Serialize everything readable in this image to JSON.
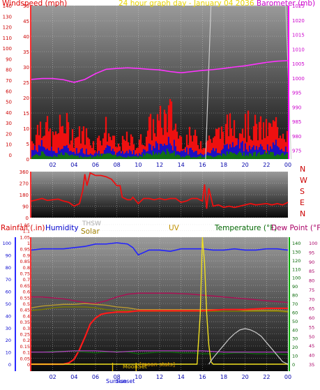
{
  "colors": {
    "wind_label": "#e00000",
    "barometer": "#cc00cc",
    "header_title": "#e8d400",
    "rain": "#d80000",
    "humidity": "#0000cc",
    "solar": "#a08000",
    "uv": "#c09000",
    "temperature": "#006600",
    "dewpoint": "#aa0066",
    "thsw": "#999999",
    "compass": "#cc0000"
  },
  "chart_data": [
    {
      "id": "wind_baro",
      "type": "area",
      "title": "24 hour graph day - January 04 2036",
      "left_axis_label": "Windspeed (mph)",
      "right_axis_label": "Barometer (mb)",
      "x_tick_labels": [
        "02",
        "04",
        "06",
        "08",
        "10",
        "12",
        "14",
        "16",
        "18",
        "20",
        "22",
        "00"
      ],
      "xlim": [
        0,
        24
      ],
      "wind_ylim": [
        0,
        50
      ],
      "wind_ticks_mph": [
        0,
        5,
        10,
        15,
        20,
        25,
        30,
        35,
        40,
        45,
        50
      ],
      "wind_ticks_kmh": [
        0,
        10,
        20,
        30,
        40,
        50,
        60,
        70,
        80,
        90,
        100,
        110,
        120,
        130,
        140
      ],
      "baro_ylim": [
        972,
        1025
      ],
      "baro_ticks": [
        975,
        980,
        985,
        990,
        995,
        1000,
        1005,
        1010,
        1015,
        1020,
        1025
      ],
      "barometer": {
        "name": "Barometer",
        "x": [
          0,
          1,
          2,
          3,
          4,
          5,
          6,
          7,
          8,
          9,
          10,
          11,
          12,
          13,
          14,
          15,
          16,
          17,
          18,
          19,
          20,
          21,
          22,
          23,
          24
        ],
        "values": [
          999.5,
          999.8,
          999.8,
          999.4,
          998.5,
          999.5,
          1001.5,
          1003,
          1003.3,
          1003.5,
          1003.3,
          1003,
          1002.8,
          1002.2,
          1001.8,
          1002.2,
          1002.6,
          1002.9,
          1003.3,
          1003.8,
          1004.2,
          1004.8,
          1005.4,
          1005.8,
          1006
        ]
      },
      "gust": {
        "name": "Wind gust",
        "x": [
          0,
          1,
          2,
          3,
          4,
          5,
          6,
          7,
          8,
          9,
          10,
          11,
          12,
          13,
          14,
          15,
          16,
          17,
          18,
          19,
          20,
          21,
          22,
          23,
          24
        ],
        "values": [
          6,
          14,
          7,
          13,
          8,
          9,
          5,
          11,
          4,
          7,
          5,
          11,
          13,
          16,
          7,
          8,
          6,
          8,
          10,
          13,
          12,
          11,
          10,
          12,
          10
        ]
      },
      "avg_wind": {
        "name": "Wind speed",
        "x": [
          0,
          1,
          2,
          3,
          4,
          5,
          6,
          7,
          8,
          9,
          10,
          11,
          12,
          13,
          14,
          15,
          16,
          17,
          18,
          19,
          20,
          21,
          22,
          23,
          24
        ],
        "values": [
          3,
          5,
          3,
          4,
          3,
          3,
          2,
          4,
          2,
          3,
          2,
          4,
          5,
          6,
          3,
          3,
          2,
          3,
          4,
          5,
          5,
          4,
          4,
          5,
          4
        ]
      },
      "wind_min": {
        "name": "Wind minimum",
        "x": [
          0,
          1,
          2,
          3,
          4,
          5,
          6,
          7,
          8,
          9,
          10,
          11,
          12,
          13,
          14,
          15,
          16,
          17,
          18,
          19,
          20,
          21,
          22,
          23,
          24
        ],
        "values": [
          1,
          2,
          1,
          2,
          1,
          1,
          1,
          2,
          1,
          1,
          1,
          2,
          2,
          3,
          1,
          1,
          1,
          1,
          2,
          2,
          2,
          2,
          2,
          2,
          2
        ]
      },
      "solar_trace": {
        "name": "Solar (Wm2, bg)",
        "x": [
          16.3,
          16.8,
          23.8,
          24.3
        ],
        "values": [
          0,
          50,
          50,
          0
        ]
      }
    },
    {
      "id": "wind_direction",
      "type": "line",
      "xlim": [
        0,
        24
      ],
      "ylim": [
        0,
        360
      ],
      "y_ticks": [
        0,
        90,
        180,
        270,
        360
      ],
      "compass_labels": [
        "N",
        "W",
        "S",
        "E",
        "N"
      ],
      "series": [
        {
          "name": "Wind direction",
          "x": [
            0,
            0.5,
            1,
            1.5,
            2,
            2.5,
            3,
            3.5,
            4,
            4.5,
            4.8,
            5,
            5.2,
            5.5,
            6,
            6.5,
            7,
            7.5,
            8,
            8.3,
            8.5,
            9,
            9.3,
            9.5,
            10,
            10.5,
            11,
            11.5,
            12,
            12.5,
            13,
            13.5,
            14,
            14.5,
            15,
            15.5,
            16,
            16.2,
            16.4,
            16.6,
            17,
            17.5,
            18,
            18.5,
            19,
            19.5,
            20,
            20.5,
            21,
            21.5,
            22,
            22.5,
            23,
            23.5,
            24
          ],
          "values": [
            130,
            140,
            150,
            135,
            140,
            145,
            130,
            120,
            90,
            110,
            210,
            340,
            250,
            350,
            330,
            330,
            320,
            300,
            250,
            250,
            160,
            140,
            140,
            160,
            110,
            150,
            150,
            140,
            150,
            140,
            150,
            150,
            120,
            130,
            150,
            150,
            130,
            260,
            70,
            230,
            90,
            100,
            80,
            90,
            80,
            90,
            100,
            110,
            100,
            105,
            110,
            100,
            110,
            100,
            120
          ]
        }
      ]
    },
    {
      "id": "temp_etc",
      "type": "line",
      "labels": [
        "Rainfall (.in)",
        "Humidity",
        "THSW",
        "Solar",
        "UV",
        "Temperature (°F)",
        "Dew Point (°F)"
      ],
      "x_tick_labels": [
        "02",
        "04",
        "06",
        "08",
        "10",
        "12",
        "14",
        "16",
        "18",
        "20",
        "22",
        "00"
      ],
      "xlim": [
        0,
        24
      ],
      "rain_ylim": [
        0,
        1
      ],
      "rain_ticks": [
        0,
        0.05,
        0.1,
        0.15,
        0.2,
        0.25,
        0.3,
        0.35,
        0.4,
        0.45,
        0.5,
        0.55,
        0.6,
        0.65,
        0.7,
        0.75,
        0.8,
        0.85,
        0.9,
        0.95,
        1,
        1.05,
        1.1,
        1.15
      ],
      "humidity_ticks": [
        0,
        10,
        20,
        30,
        40,
        50,
        60,
        70,
        80,
        90,
        100
      ],
      "temp_ticks": [
        0,
        10,
        20,
        30,
        40,
        50,
        60,
        70,
        80,
        90,
        100,
        110,
        120,
        130,
        140
      ],
      "dew_ticks": [
        35,
        40,
        45,
        50,
        55,
        60,
        65,
        70,
        75,
        80,
        85,
        90,
        95,
        100
      ],
      "annotations": {
        "sunrise": "Sunrise",
        "sunset": "Sunset",
        "moonset": "MoonSet",
        "moon_text": "[moon stats]"
      },
      "series": [
        {
          "name": "Humidity",
          "axis": "humidity",
          "x": [
            0,
            1,
            2,
            3,
            4,
            5,
            6,
            7,
            8,
            9,
            9.5,
            10,
            10.5,
            11,
            12,
            13,
            14,
            15,
            16,
            17,
            18,
            19,
            20,
            21,
            22,
            23,
            24
          ],
          "values": [
            94,
            95,
            95,
            95,
            96,
            97,
            99,
            99,
            100,
            99,
            96,
            90,
            92,
            94,
            94,
            93,
            95,
            95,
            95,
            94,
            94,
            95,
            94,
            94,
            95,
            95,
            94
          ]
        },
        {
          "name": "Dew Point",
          "axis": "dew",
          "x": [
            0,
            1,
            2,
            3,
            4,
            5,
            6,
            7,
            8,
            9,
            10,
            11,
            12,
            13,
            14,
            15,
            16,
            17,
            18,
            19,
            20,
            21,
            22,
            23,
            24
          ],
          "values": [
            71,
            71,
            70.5,
            70,
            69,
            68,
            67.5,
            69,
            71,
            72.5,
            73,
            73,
            73,
            73,
            72.8,
            72.5,
            72,
            71.5,
            71,
            70.5,
            70,
            69.5,
            69,
            68.5,
            68
          ]
        },
        {
          "name": "THSW",
          "axis": "temp",
          "x": [
            0,
            1,
            2,
            3,
            4,
            5,
            6,
            7,
            8,
            9,
            10,
            11,
            12,
            13,
            14,
            15,
            16,
            17,
            18,
            19,
            20,
            21,
            22,
            23,
            24
          ],
          "values": [
            65,
            67,
            68,
            69,
            69,
            70,
            69,
            68,
            66,
            65,
            63,
            63,
            63,
            63,
            63,
            63,
            63,
            63,
            63,
            63,
            62,
            62,
            62,
            62,
            61
          ]
        },
        {
          "name": "Temperature",
          "axis": "temp",
          "x": [
            0,
            1,
            2,
            3,
            4,
            5,
            6,
            7,
            8,
            9,
            10,
            11,
            12,
            13,
            14,
            15,
            16,
            17,
            18,
            19,
            20,
            21,
            22,
            23,
            24
          ],
          "values": [
            62,
            63,
            65,
            66,
            66,
            66,
            65,
            63,
            62,
            62,
            61,
            61,
            61,
            61,
            61,
            61,
            61,
            61,
            61,
            61,
            61,
            61,
            61,
            61,
            60
          ]
        },
        {
          "name": "Rainfall",
          "axis": "rain",
          "x": [
            0,
            3,
            3.5,
            4,
            4.5,
            5,
            5.5,
            6,
            6.5,
            7,
            8,
            9,
            10,
            12,
            14,
            16,
            18,
            20,
            22,
            24
          ],
          "values": [
            0,
            0,
            0.01,
            0.04,
            0.12,
            0.22,
            0.33,
            0.38,
            0.41,
            0.42,
            0.43,
            0.43,
            0.44,
            0.44,
            0.44,
            0.44,
            0.45,
            0.45,
            0.46,
            0.46
          ]
        },
        {
          "name": "Temperature (low)",
          "axis": "temp",
          "x": [
            0,
            1,
            2,
            3,
            4,
            5,
            6,
            7,
            8,
            9,
            10,
            11,
            12,
            13,
            14,
            15,
            16,
            17,
            18,
            19,
            20,
            21,
            22,
            23,
            24
          ],
          "values": [
            14,
            14,
            15,
            15,
            15,
            14,
            13,
            14,
            15,
            14,
            12,
            13,
            14,
            14,
            13,
            13,
            12,
            12,
            12,
            13,
            13,
            12,
            12,
            12,
            11
          ]
        },
        {
          "name": "Humidity (low)",
          "axis": "humidity",
          "x": [
            0,
            2,
            4,
            6,
            8,
            10,
            12,
            14,
            16,
            18,
            20,
            22,
            24
          ],
          "values": [
            10,
            10,
            11,
            11,
            10,
            11,
            11,
            11,
            11,
            10,
            10,
            10,
            10
          ]
        },
        {
          "name": "Solar",
          "axis": "solar",
          "x": [
            0,
            15.5,
            15.8,
            16,
            16.2,
            16.4,
            16.6,
            16.8,
            17,
            24
          ],
          "values": [
            0,
            0,
            0.4,
            1.0,
            0.8,
            0.4,
            0.15,
            0.02,
            0,
            0
          ]
        },
        {
          "name": "UV",
          "axis": "solar",
          "x": [
            16.6,
            17,
            17.5,
            18,
            18.5,
            19,
            19.5,
            20,
            20.5,
            21,
            21.5,
            22,
            22.5,
            23,
            23.5,
            24
          ],
          "values": [
            0,
            0.05,
            0.1,
            0.15,
            0.2,
            0.24,
            0.27,
            0.28,
            0.27,
            0.25,
            0.22,
            0.17,
            0.12,
            0.07,
            0.02,
            0
          ]
        }
      ]
    }
  ]
}
